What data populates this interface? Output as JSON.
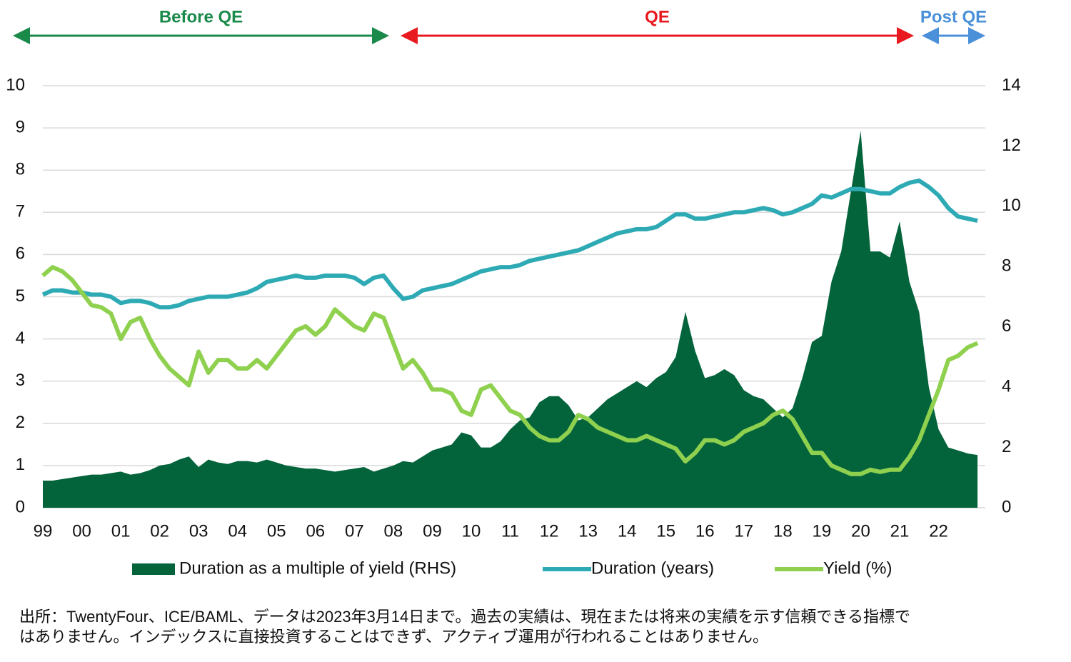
{
  "chart_data": {
    "type": "line",
    "phases": [
      {
        "label": "Before QE",
        "color": "#1a8a4a"
      },
      {
        "label": "QE",
        "color": "#e8191f"
      },
      {
        "label": "Post QE",
        "color": "#4a90d9"
      }
    ],
    "x": [
      1999,
      1999.25,
      1999.5,
      1999.75,
      2000,
      2000.25,
      2000.5,
      2000.75,
      2001,
      2001.25,
      2001.5,
      2001.75,
      2002,
      2002.25,
      2002.5,
      2002.75,
      2003,
      2003.25,
      2003.5,
      2003.75,
      2004,
      2004.25,
      2004.5,
      2004.75,
      2005,
      2005.25,
      2005.5,
      2005.75,
      2006,
      2006.25,
      2006.5,
      2006.75,
      2007,
      2007.25,
      2007.5,
      2007.75,
      2008,
      2008.25,
      2008.5,
      2008.75,
      2009,
      2009.25,
      2009.5,
      2009.75,
      2010,
      2010.25,
      2010.5,
      2010.75,
      2011,
      2011.25,
      2011.5,
      2011.75,
      2012,
      2012.25,
      2012.5,
      2012.75,
      2013,
      2013.25,
      2013.5,
      2013.75,
      2014,
      2014.25,
      2014.5,
      2014.75,
      2015,
      2015.25,
      2015.5,
      2015.75,
      2016,
      2016.25,
      2016.5,
      2016.75,
      2017,
      2017.25,
      2017.5,
      2017.75,
      2018,
      2018.25,
      2018.5,
      2018.75,
      2019,
      2019.25,
      2019.5,
      2019.75,
      2020,
      2020.25,
      2020.5,
      2020.75,
      2021,
      2021.25,
      2021.5,
      2021.75,
      2022,
      2022.25,
      2022.5,
      2022.75,
      2023
    ],
    "series": [
      {
        "name": "Duration as a multiple of yield (RHS)",
        "color": "#03643c",
        "style": "area",
        "axis": "y2",
        "values": [
          0.9,
          0.9,
          0.95,
          1.0,
          1.05,
          1.1,
          1.1,
          1.15,
          1.2,
          1.1,
          1.15,
          1.25,
          1.4,
          1.45,
          1.6,
          1.7,
          1.35,
          1.6,
          1.5,
          1.45,
          1.55,
          1.55,
          1.5,
          1.6,
          1.5,
          1.4,
          1.35,
          1.3,
          1.3,
          1.25,
          1.2,
          1.25,
          1.3,
          1.35,
          1.2,
          1.3,
          1.4,
          1.55,
          1.5,
          1.7,
          1.9,
          2.0,
          2.1,
          2.5,
          2.4,
          2.0,
          2.0,
          2.2,
          2.6,
          2.9,
          3.0,
          3.5,
          3.7,
          3.7,
          3.4,
          2.9,
          3.0,
          3.3,
          3.6,
          3.8,
          4.0,
          4.2,
          4.0,
          4.3,
          4.5,
          5.0,
          6.5,
          5.2,
          4.3,
          4.4,
          4.6,
          4.4,
          3.9,
          3.7,
          3.6,
          3.3,
          3.0,
          3.3,
          4.3,
          5.5,
          5.7,
          7.5,
          8.5,
          10.5,
          12.5,
          8.5,
          8.5,
          8.3,
          9.5,
          7.5,
          6.5,
          4.0,
          2.6,
          2.0,
          1.9,
          1.8,
          1.75
        ]
      },
      {
        "name": "Duration (years)",
        "color": "#2eaab5",
        "style": "line",
        "values": [
          5.05,
          5.15,
          5.15,
          5.1,
          5.1,
          5.05,
          5.05,
          5.0,
          4.85,
          4.9,
          4.9,
          4.85,
          4.75,
          4.75,
          4.8,
          4.9,
          4.95,
          5.0,
          5.0,
          5.0,
          5.05,
          5.1,
          5.2,
          5.35,
          5.4,
          5.45,
          5.5,
          5.45,
          5.45,
          5.5,
          5.5,
          5.5,
          5.45,
          5.3,
          5.45,
          5.5,
          5.2,
          4.95,
          5.0,
          5.15,
          5.2,
          5.25,
          5.3,
          5.4,
          5.5,
          5.6,
          5.65,
          5.7,
          5.7,
          5.75,
          5.85,
          5.9,
          5.95,
          6.0,
          6.05,
          6.1,
          6.2,
          6.3,
          6.4,
          6.5,
          6.55,
          6.6,
          6.6,
          6.65,
          6.8,
          6.95,
          6.95,
          6.85,
          6.85,
          6.9,
          6.95,
          7.0,
          7.0,
          7.05,
          7.1,
          7.05,
          6.95,
          7.0,
          7.1,
          7.2,
          7.4,
          7.35,
          7.45,
          7.55,
          7.55,
          7.5,
          7.45,
          7.45,
          7.6,
          7.7,
          7.75,
          7.6,
          7.4,
          7.1,
          6.9,
          6.85,
          6.8
        ]
      },
      {
        "name": "Yield (%)",
        "color": "#8fd14f",
        "style": "line",
        "values": [
          5.5,
          5.7,
          5.6,
          5.4,
          5.1,
          4.8,
          4.75,
          4.6,
          4.0,
          4.4,
          4.5,
          4.0,
          3.6,
          3.3,
          3.1,
          2.9,
          3.7,
          3.2,
          3.5,
          3.5,
          3.3,
          3.3,
          3.5,
          3.3,
          3.6,
          3.9,
          4.2,
          4.3,
          4.1,
          4.3,
          4.7,
          4.5,
          4.3,
          4.2,
          4.6,
          4.5,
          3.9,
          3.3,
          3.5,
          3.2,
          2.8,
          2.8,
          2.7,
          2.3,
          2.2,
          2.8,
          2.9,
          2.6,
          2.3,
          2.2,
          1.9,
          1.7,
          1.6,
          1.6,
          1.8,
          2.2,
          2.1,
          1.9,
          1.8,
          1.7,
          1.6,
          1.6,
          1.7,
          1.6,
          1.5,
          1.4,
          1.1,
          1.3,
          1.6,
          1.6,
          1.5,
          1.6,
          1.8,
          1.9,
          2.0,
          2.2,
          2.3,
          2.1,
          1.7,
          1.3,
          1.3,
          1.0,
          0.9,
          0.8,
          0.8,
          0.9,
          0.85,
          0.9,
          0.9,
          1.2,
          1.6,
          2.2,
          2.8,
          3.5,
          3.6,
          3.8,
          3.9
        ]
      }
    ],
    "xlim": [
      1999,
      2023.2
    ],
    "xticks": [
      {
        "value": 1999,
        "label": "99"
      },
      {
        "value": 2000,
        "label": "00"
      },
      {
        "value": 2001,
        "label": "01"
      },
      {
        "value": 2002,
        "label": "02"
      },
      {
        "value": 2003,
        "label": "03"
      },
      {
        "value": 2004,
        "label": "04"
      },
      {
        "value": 2005,
        "label": "05"
      },
      {
        "value": 2006,
        "label": "06"
      },
      {
        "value": 2007,
        "label": "07"
      },
      {
        "value": 2008,
        "label": "08"
      },
      {
        "value": 2009,
        "label": "09"
      },
      {
        "value": 2010,
        "label": "10"
      },
      {
        "value": 2011,
        "label": "11"
      },
      {
        "value": 2012,
        "label": "12"
      },
      {
        "value": 2013,
        "label": "13"
      },
      {
        "value": 2014,
        "label": "14"
      },
      {
        "value": 2015,
        "label": "15"
      },
      {
        "value": 2016,
        "label": "16"
      },
      {
        "value": 2017,
        "label": "17"
      },
      {
        "value": 2018,
        "label": "18"
      },
      {
        "value": 2019,
        "label": "19"
      },
      {
        "value": 2020,
        "label": "20"
      },
      {
        "value": 2021,
        "label": "21"
      },
      {
        "value": 2022,
        "label": "22"
      }
    ],
    "ylim": [
      0,
      10
    ],
    "yticks": [
      0,
      1,
      2,
      3,
      4,
      5,
      6,
      7,
      8,
      9,
      10
    ],
    "y2lim": [
      0,
      14
    ],
    "y2ticks": [
      0,
      2,
      4,
      6,
      8,
      10,
      12,
      14
    ],
    "grid": true,
    "legend": "bottom",
    "note": [
      "出所：TwentyFour、ICE/BAML、データは2023年3月14日まで。過去の実績は、現在または将来の実績を示す信頼できる指標で",
      "はありません。インデックスに直接投資することはできず、アクティブ運用が行われることはありません。"
    ]
  }
}
